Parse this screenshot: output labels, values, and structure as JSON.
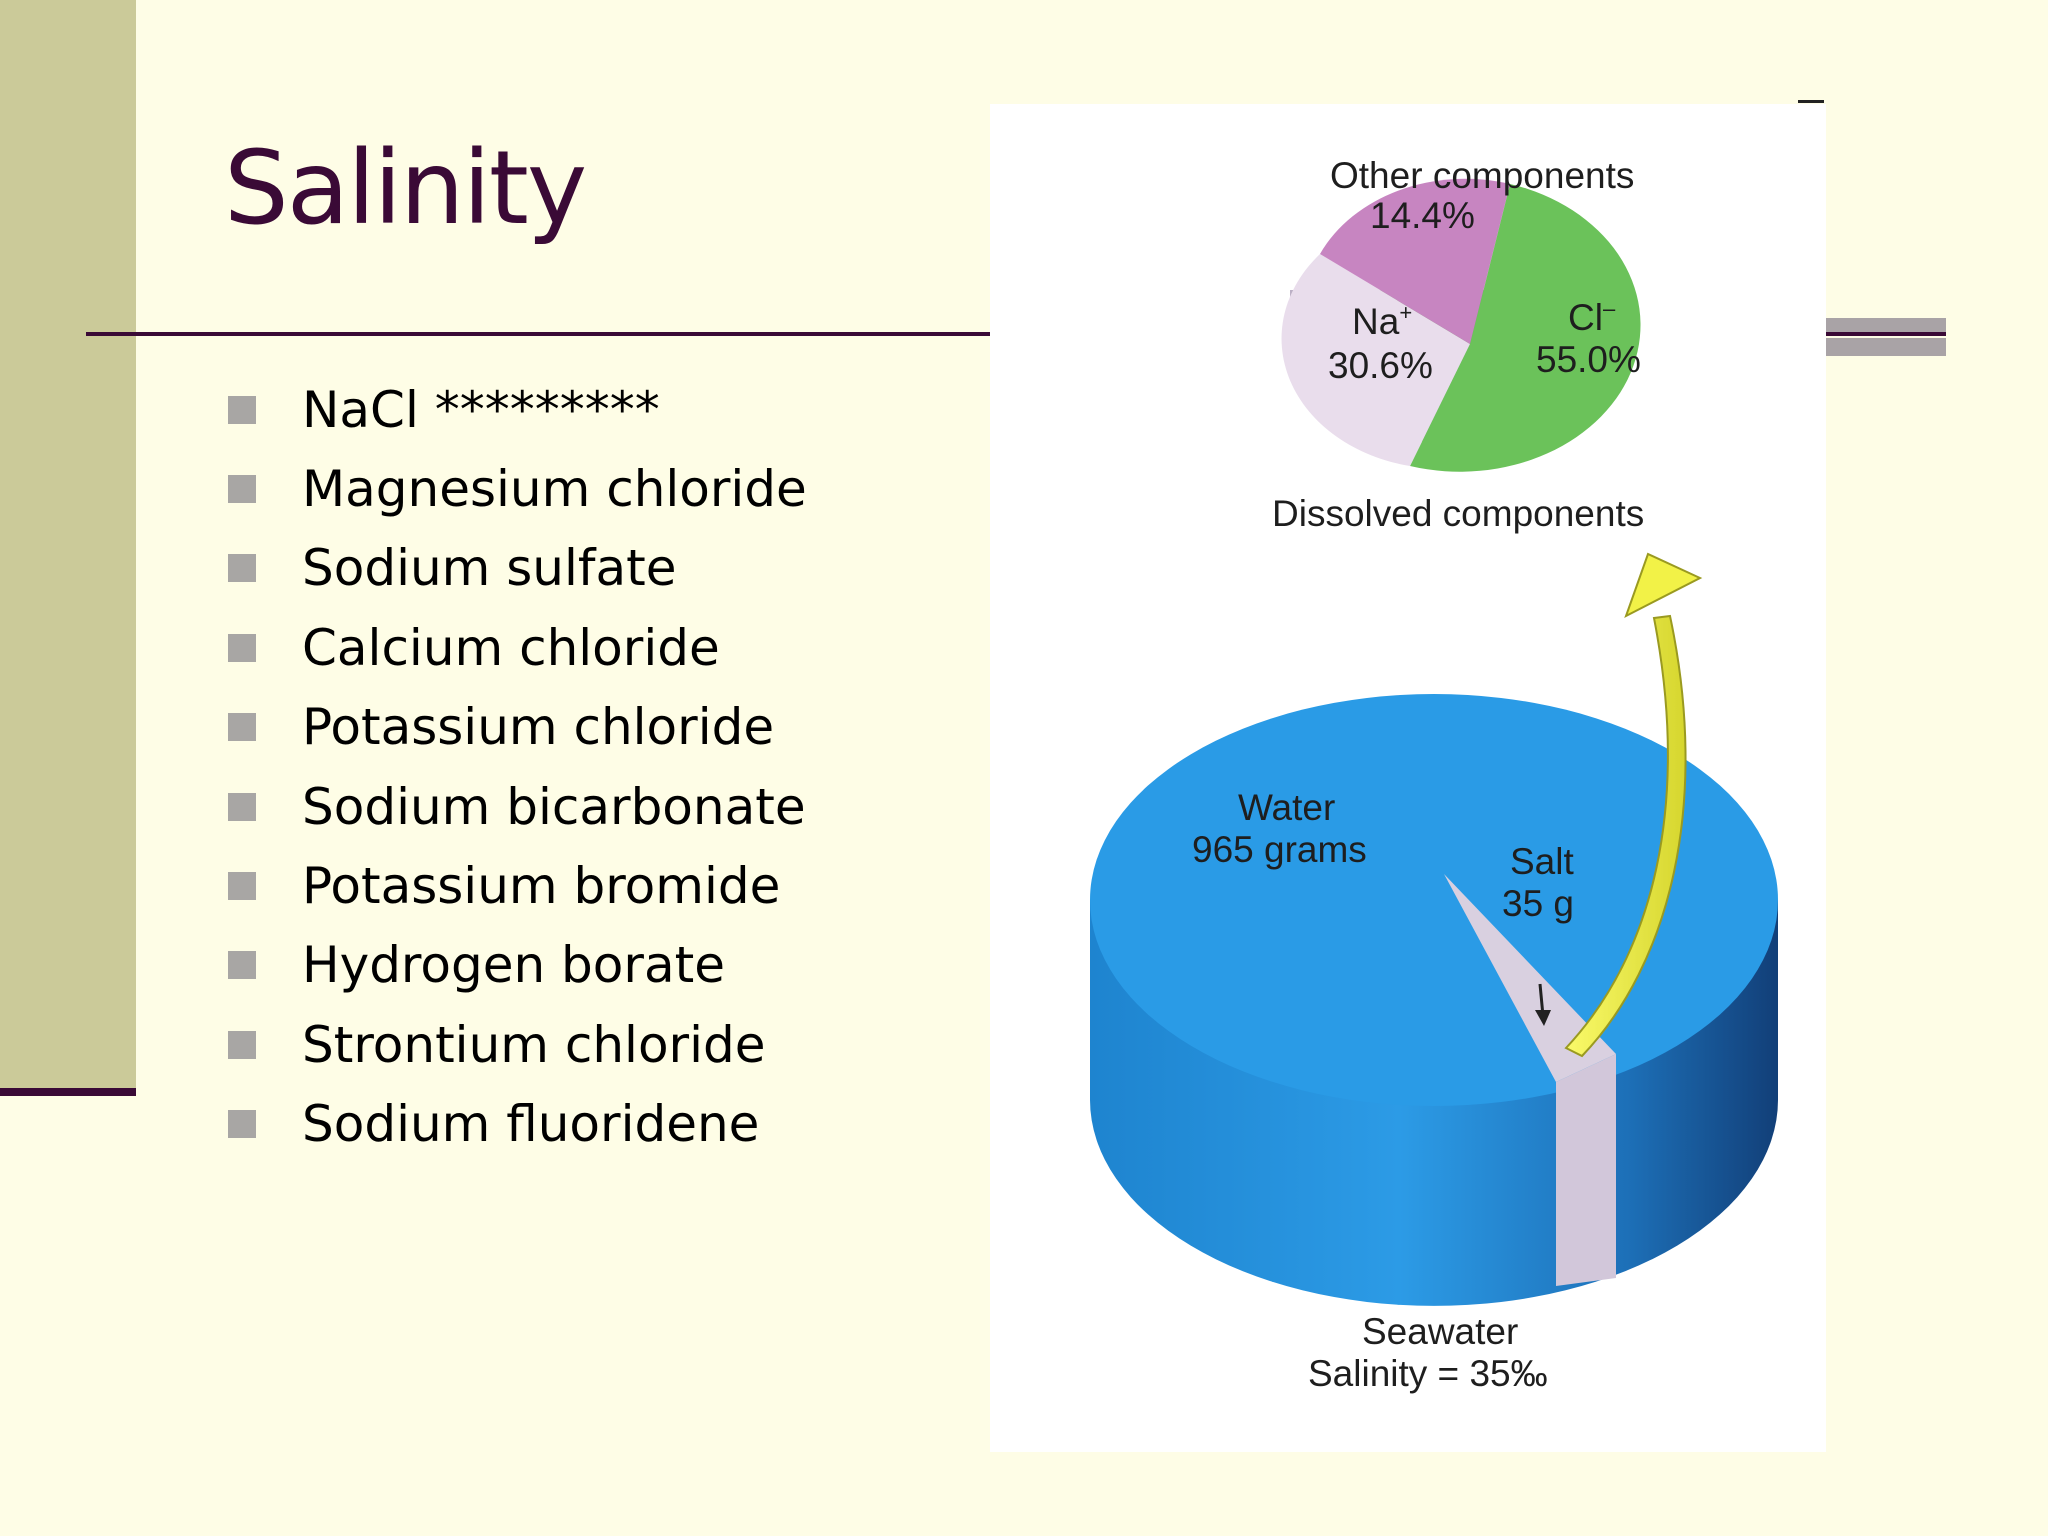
{
  "slide": {
    "title": "Salinity",
    "bullets": [
      "NaCl *********",
      "Magnesium chloride",
      "Sodium sulfate",
      "Calcium chloride",
      "Potassium chloride",
      "Sodium bicarbonate",
      "Potassium bromide",
      "Hydrogen borate",
      "Strontium chloride",
      "Sodium fluoridene"
    ]
  },
  "figure": {
    "pie": {
      "other_label": "Other components",
      "other_value": "14.4%",
      "na_label": "Na",
      "na_sup": "+",
      "na_value": "30.6%",
      "cl_label": "Cl",
      "cl_sup": "–",
      "cl_value": "55.0%",
      "caption": "Dissolved components"
    },
    "cylinder": {
      "water_label": "Water",
      "water_value": "965 grams",
      "salt_label": "Salt",
      "salt_value": "35 g",
      "caption_line1": "Seawater",
      "caption_line2": "Salinity = 35‰"
    },
    "colors": {
      "cl": "#6BC25A",
      "na": "#E9DDEC",
      "other": "#C785C1",
      "water": "#2A9BE6",
      "salt": "#D6CCDF",
      "arrow": "#F2F247"
    }
  },
  "chart_data": {
    "type": "pie",
    "title": "Dissolved components",
    "slices": [
      {
        "label": "Cl–",
        "value": 55.0
      },
      {
        "label": "Na+",
        "value": 30.6
      },
      {
        "label": "Other components",
        "value": 14.4
      }
    ],
    "seawater": [
      {
        "label": "Water",
        "value": 965,
        "unit": "grams"
      },
      {
        "label": "Salt",
        "value": 35,
        "unit": "g"
      }
    ],
    "annotation": "Salinity = 35‰"
  }
}
